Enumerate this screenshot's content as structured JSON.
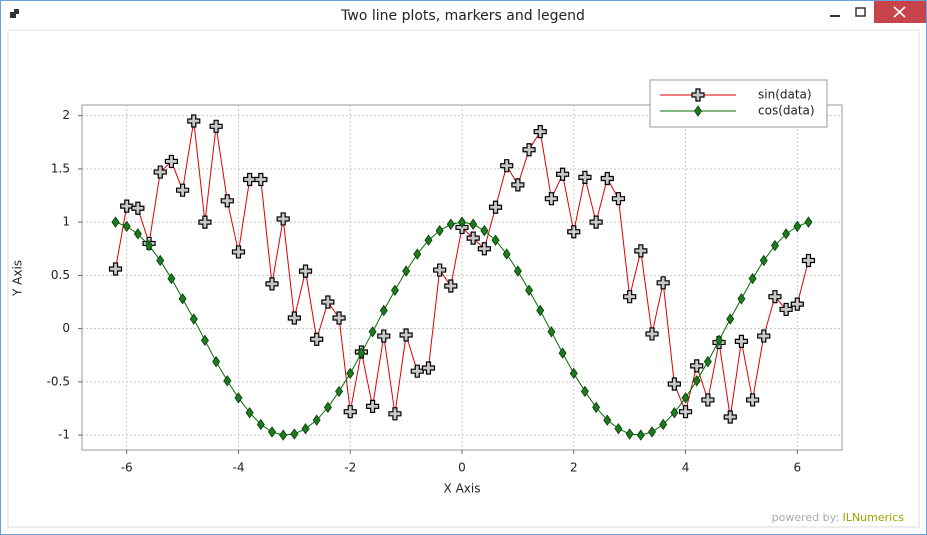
{
  "window_title": "Two line plots, markers and legend",
  "watermark": {
    "prefix": "powered by:",
    "brand": "ILNumerics"
  },
  "chart_data": {
    "type": "line",
    "x_label": "X Axis",
    "y_label": "Y Axis",
    "x": [
      -6.2,
      -6,
      -5.8,
      -5.6,
      -5.4,
      -5.2,
      -5,
      -4.8,
      -4.6,
      -4.4,
      -4.2,
      -4,
      -3.8,
      -3.6,
      -3.4,
      -3.2,
      -3,
      -2.8,
      -2.6,
      -2.4,
      -2.2,
      -2,
      -1.8,
      -1.6,
      -1.4,
      -1.2,
      -1,
      -0.8,
      -0.6,
      -0.4,
      -0.2,
      0,
      0.2,
      0.4,
      0.6,
      0.8,
      1,
      1.2,
      1.4,
      1.6,
      1.8,
      2,
      2.2,
      2.4,
      2.6,
      2.8,
      3,
      3.2,
      3.4,
      3.6,
      3.8,
      4,
      4.2,
      4.4,
      4.6,
      4.8,
      5,
      5.2,
      5.4,
      5.6,
      5.8,
      6,
      6.2
    ],
    "series": [
      {
        "name": "sin(data)",
        "color": "#e00000",
        "marker": "plus",
        "marker_color": "#c8c8c8",
        "values": [
          0.56,
          1.15,
          1.13,
          0.8,
          1.47,
          1.57,
          1.3,
          1.95,
          1.0,
          1.9,
          1.2,
          0.72,
          1.4,
          1.4,
          0.42,
          1.03,
          0.1,
          0.54,
          -0.1,
          0.25,
          0.1,
          -0.78,
          -0.22,
          -0.73,
          -0.07,
          -0.8,
          -0.06,
          -0.4,
          -0.37,
          0.55,
          0.4,
          0.95,
          0.85,
          0.75,
          1.14,
          1.53,
          1.35,
          1.68,
          1.85,
          1.22,
          1.45,
          0.91,
          1.42,
          1.0,
          1.41,
          1.22,
          0.3,
          0.73,
          -0.05,
          0.43,
          -0.52,
          -0.78,
          -0.35,
          -0.67,
          -0.13,
          -0.83,
          -0.12,
          -0.67,
          -0.07,
          0.3,
          0.18,
          0.23,
          0.64
        ]
      },
      {
        "name": "cos(data)",
        "color": "#007000",
        "marker": "diamond",
        "marker_color": "#1d7a1d",
        "values": [
          1.0,
          0.96,
          0.89,
          0.78,
          0.64,
          0.47,
          0.28,
          0.09,
          -0.11,
          -0.31,
          -0.49,
          -0.65,
          -0.79,
          -0.9,
          -0.97,
          -1.0,
          -0.99,
          -0.94,
          -0.86,
          -0.74,
          -0.59,
          -0.42,
          -0.23,
          -0.03,
          0.17,
          0.36,
          0.54,
          0.7,
          0.83,
          0.92,
          0.98,
          1.0,
          0.98,
          0.92,
          0.83,
          0.7,
          0.54,
          0.36,
          0.17,
          -0.03,
          -0.23,
          -0.42,
          -0.59,
          -0.74,
          -0.86,
          -0.94,
          -0.99,
          -1.0,
          -0.97,
          -0.9,
          -0.79,
          -0.65,
          -0.49,
          -0.31,
          -0.11,
          0.09,
          0.28,
          0.47,
          0.64,
          0.78,
          0.89,
          0.96,
          1.0
        ]
      }
    ],
    "xlim": [
      -6.8,
      6.8
    ],
    "ylim": [
      -1.14,
      2.1
    ],
    "xticks": [
      -6,
      -4,
      -2,
      0,
      2,
      4,
      6
    ],
    "yticks": [
      -1,
      -0.5,
      0,
      0.5,
      1,
      1.5,
      2
    ],
    "grid": true,
    "legend": "top-right"
  }
}
